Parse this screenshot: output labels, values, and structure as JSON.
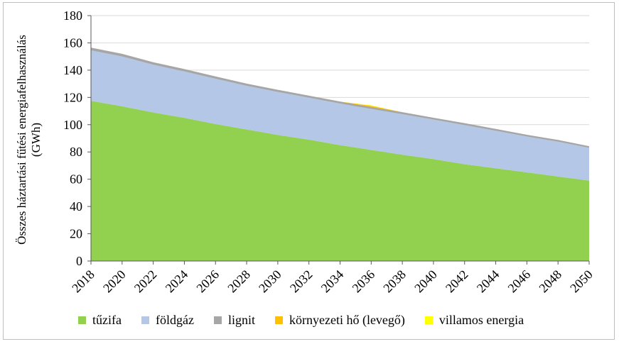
{
  "chart_data": {
    "type": "area",
    "stacked": true,
    "ylabel": "Összes háztartási fűtési energiafelhasználás (GWh)",
    "xlabel": "",
    "x": [
      2018,
      2020,
      2022,
      2024,
      2026,
      2028,
      2030,
      2032,
      2034,
      2036,
      2038,
      2040,
      2042,
      2044,
      2046,
      2048,
      2050
    ],
    "x_tick_labels": [
      "2018",
      "2020",
      "2022",
      "2024",
      "2026",
      "2028",
      "2030",
      "2032",
      "2034",
      "2036",
      "2038",
      "2040",
      "2042",
      "2044",
      "2046",
      "2048",
      "2050"
    ],
    "y_ticks": [
      0,
      20,
      40,
      60,
      80,
      100,
      120,
      140,
      160,
      180
    ],
    "ylim": [
      0,
      180
    ],
    "grid": "horizontal",
    "legend_position": "bottom",
    "series": [
      {
        "name": "tűzifa",
        "color": "#92d050",
        "values": [
          117.5,
          113.5,
          109,
          105,
          100.5,
          96.5,
          92.5,
          89,
          85,
          81.5,
          78,
          74.8,
          71,
          68,
          65,
          62,
          59
        ]
      },
      {
        "name": "földgáz",
        "color": "#b4c7e7",
        "values": [
          37,
          36.5,
          35,
          34,
          33.2,
          32,
          31.5,
          30.8,
          30.5,
          30,
          29.7,
          28.9,
          28.7,
          27.5,
          26.3,
          25.5,
          24
        ]
      },
      {
        "name": "lignit",
        "color": "#a6a6a6",
        "values": [
          2,
          2,
          1.8,
          1.8,
          1.7,
          1.6,
          1.6,
          1.5,
          1.5,
          1.5,
          1.5,
          1.4,
          1.4,
          1.4,
          1.3,
          1.3,
          1.2
        ]
      },
      {
        "name": "környezeti hő (levegő)",
        "color": "#ffc000",
        "values": [
          0,
          0,
          0,
          0,
          0,
          0,
          0,
          0,
          0,
          0.8,
          0,
          0,
          0,
          0,
          0,
          0,
          0
        ]
      },
      {
        "name": "villamos energia",
        "color": "#ffff00",
        "values": [
          0,
          0,
          0,
          0,
          0,
          0,
          0,
          0,
          0,
          0.4,
          0,
          0,
          0,
          0,
          0,
          0,
          0
        ]
      }
    ]
  }
}
